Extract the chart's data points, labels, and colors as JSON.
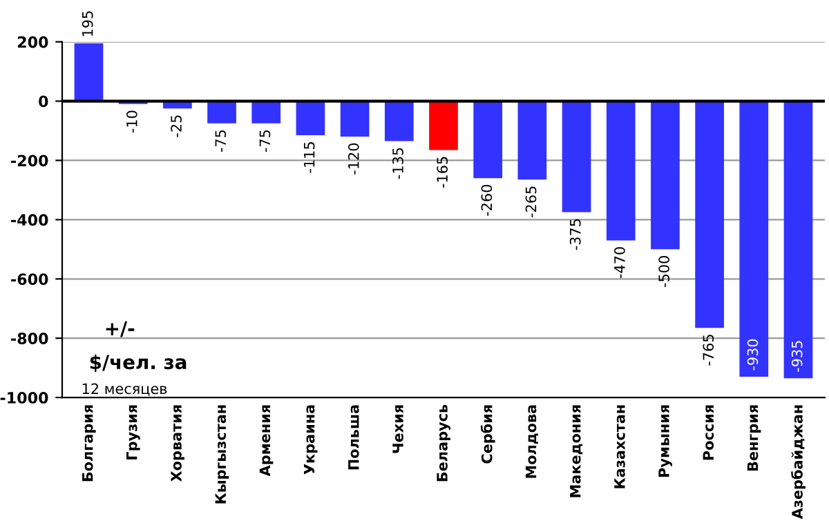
{
  "chart_data": {
    "type": "bar",
    "categories": [
      "Болгария",
      "Грузия",
      "Хорватия",
      "Кыргызстан",
      "Армения",
      "Украина",
      "Польша",
      "Чехия",
      "Беларусь",
      "Сербия",
      "Молдова",
      "Македония",
      "Казахстан",
      "Румыния",
      "Россия",
      "Венгрия",
      "Азербайджан"
    ],
    "values": [
      195,
      -10,
      -25,
      -75,
      -75,
      -115,
      -120,
      -135,
      -165,
      -260,
      -265,
      -375,
      -470,
      -500,
      -765,
      -930,
      -935
    ],
    "colors": [
      "#3333ff",
      "#3333ff",
      "#3333ff",
      "#3333ff",
      "#3333ff",
      "#3333ff",
      "#3333ff",
      "#3333ff",
      "#ff0000",
      "#3333ff",
      "#3333ff",
      "#3333ff",
      "#3333ff",
      "#3333ff",
      "#3333ff",
      "#3333ff",
      "#3333ff"
    ],
    "ylim": [
      -1000,
      200
    ],
    "yticks": [
      -1000,
      -800,
      -600,
      -400,
      -200,
      0,
      200
    ],
    "grid": "y",
    "data_labels": true,
    "legend": false,
    "annotations": [
      "+/-",
      "$/чел. за",
      "12 месяцев"
    ]
  }
}
